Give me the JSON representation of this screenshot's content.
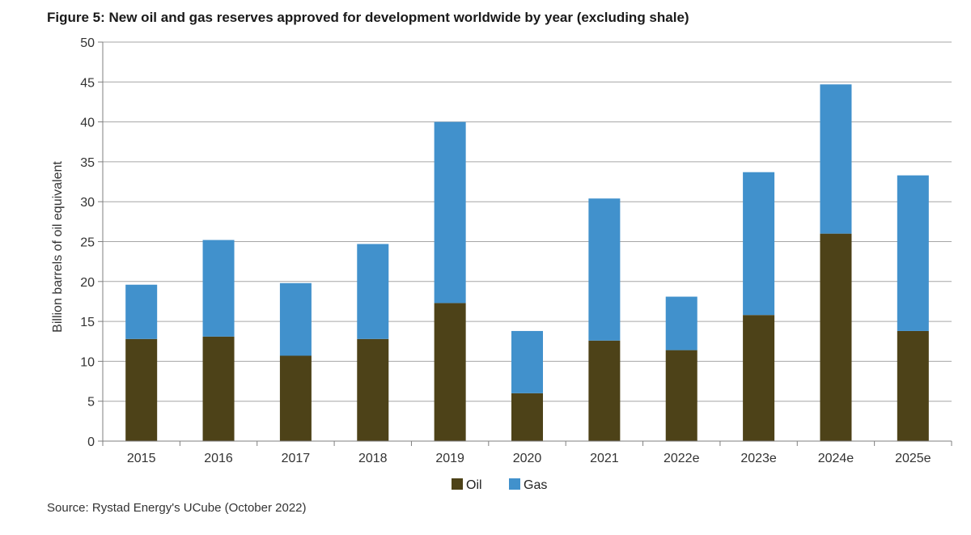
{
  "title": "Figure 5: New oil and gas reserves approved for development worldwide by year (excluding shale)",
  "source": "Source: Rystad Energy's UCube (October 2022)",
  "colors": {
    "oil": "#4d4218",
    "gas": "#4191cc",
    "grid": "#a6a6a6",
    "axis": "#7f7f7f"
  },
  "chart_data": {
    "type": "bar",
    "stacked": true,
    "categories": [
      "2015",
      "2016",
      "2017",
      "2018",
      "2019",
      "2020",
      "2021",
      "2022e",
      "2023e",
      "2024e",
      "2025e"
    ],
    "series": [
      {
        "name": "Oil",
        "color": "#4d4218",
        "values": [
          12.8,
          13.1,
          10.7,
          12.8,
          17.3,
          6.0,
          12.6,
          11.4,
          15.8,
          26.0,
          13.8
        ]
      },
      {
        "name": "Gas",
        "color": "#4191cc",
        "values": [
          6.8,
          12.1,
          9.1,
          11.9,
          22.7,
          7.8,
          17.8,
          6.7,
          17.9,
          18.7,
          19.5
        ]
      }
    ],
    "ylabel": "Billion barrels of oil equivalent",
    "xlabel": "",
    "ylim": [
      0,
      50
    ],
    "yticks": [
      0,
      5,
      10,
      15,
      20,
      25,
      30,
      35,
      40,
      45,
      50
    ],
    "grid": true,
    "legend": "bottom-center"
  }
}
